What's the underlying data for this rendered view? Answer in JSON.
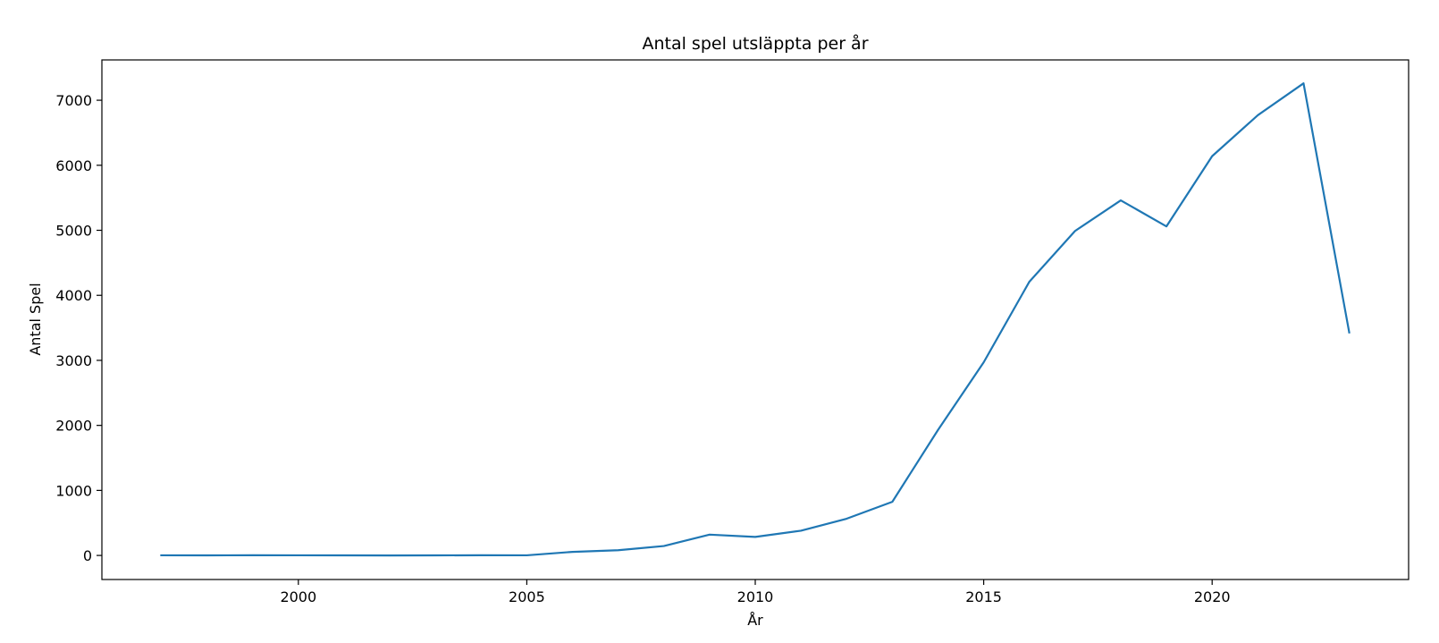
{
  "chart_data": {
    "type": "line",
    "title": "Antal spel utsläppta per år",
    "xlabel": "År",
    "ylabel": "Antal Spel",
    "x": [
      1997,
      1998,
      1999,
      2000,
      2001,
      2002,
      2003,
      2004,
      2005,
      2006,
      2007,
      2008,
      2009,
      2010,
      2011,
      2012,
      2013,
      2014,
      2015,
      2016,
      2017,
      2018,
      2019,
      2020,
      2021,
      2022,
      2023
    ],
    "series": [
      {
        "values": [
          2,
          1,
          3,
          2,
          1,
          0,
          1,
          3,
          2,
          55,
          80,
          145,
          320,
          285,
          380,
          565,
          825,
          1930,
          2970,
          4210,
          4990,
          5460,
          5060,
          6140,
          6770,
          7260,
          3430
        ],
        "color": "#1f77b4"
      }
    ],
    "xlim": [
      1995.7,
      2024.3
    ],
    "ylim": [
      -370,
      7620
    ],
    "xticks": [
      2000,
      2005,
      2010,
      2015,
      2020
    ],
    "yticks": [
      0,
      1000,
      2000,
      3000,
      4000,
      5000,
      6000,
      7000
    ],
    "grid": false,
    "legend": "none"
  }
}
